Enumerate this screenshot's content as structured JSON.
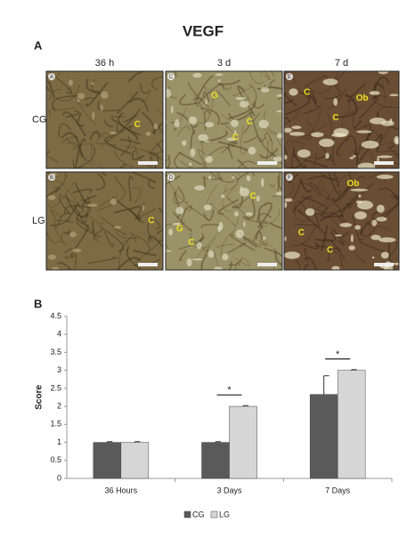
{
  "figure": {
    "title": "VEGF",
    "panel_a_label": "A",
    "panel_b_label": "B",
    "columns": [
      "36 h",
      "3 d",
      "7 d"
    ],
    "rows": [
      "CG",
      "LG"
    ],
    "images": [
      {
        "letter": "A",
        "annotations": [
          "C"
        ]
      },
      {
        "letter": "C",
        "annotations": [
          "G",
          "C",
          "C"
        ]
      },
      {
        "letter": "E",
        "annotations": [
          "C",
          "Ob",
          "C"
        ]
      },
      {
        "letter": "B",
        "annotations": [
          "C"
        ]
      },
      {
        "letter": "D",
        "annotations": [
          "C",
          "G",
          "C"
        ]
      },
      {
        "letter": "F",
        "annotations": [
          "Ob",
          "C",
          "C"
        ]
      }
    ]
  },
  "chart_data": {
    "type": "bar",
    "categories": [
      "36 Hours",
      "3 Days",
      "7 Days"
    ],
    "series": [
      {
        "name": "CG",
        "color": "#5a5a5a",
        "values": [
          1,
          1,
          2.33
        ],
        "errors": [
          0.02,
          0.02,
          0.52
        ]
      },
      {
        "name": "LG",
        "color": "#d6d6d6",
        "values": [
          1,
          2,
          3
        ],
        "errors": [
          0.02,
          0.02,
          0.02
        ]
      }
    ],
    "ylabel": "Score",
    "ylim": [
      0,
      4.5
    ],
    "yticks": [
      0,
      0.5,
      1,
      1.5,
      2,
      2.5,
      3,
      3.5,
      4,
      4.5
    ],
    "annotations": [
      "*",
      "*"
    ],
    "legend": "bottom"
  }
}
